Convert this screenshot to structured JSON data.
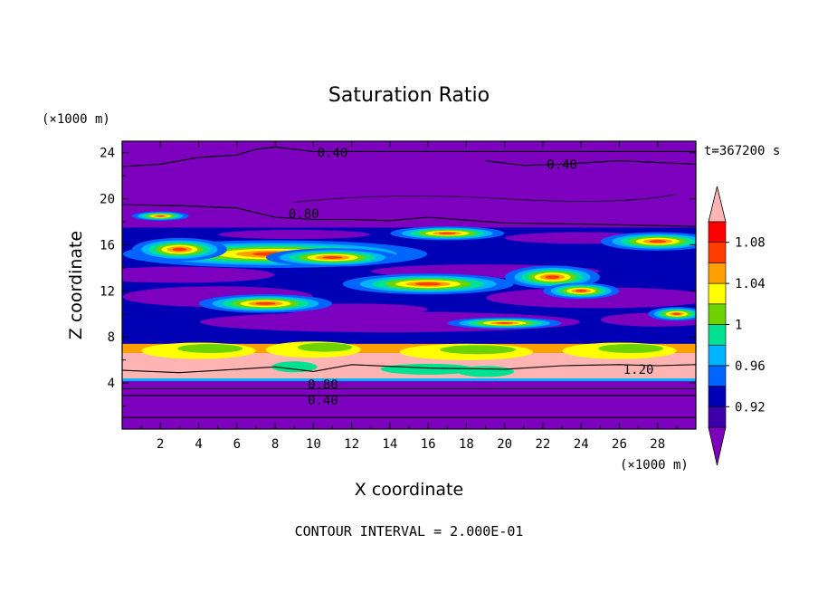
{
  "chart_data": {
    "type": "heatmap",
    "title": "Saturation Ratio",
    "xlabel": "X coordinate",
    "ylabel": "Z coordinate",
    "x_unit": "(×1000 m)",
    "y_unit": "(×1000 m)",
    "time_label": "t=367200 s",
    "footer": "CONTOUR INTERVAL = 2.000E-01",
    "xlim": [
      0,
      30
    ],
    "ylim": [
      0,
      25
    ],
    "x_ticks": [
      2,
      4,
      6,
      8,
      10,
      12,
      14,
      16,
      18,
      20,
      22,
      24,
      26,
      28
    ],
    "y_ticks": [
      4,
      8,
      12,
      16,
      20,
      24
    ],
    "colorbar": {
      "levels": [
        0.9,
        0.92,
        0.94,
        0.96,
        0.98,
        1.0,
        1.02,
        1.04,
        1.06,
        1.08,
        1.1
      ],
      "tick_labels": [
        "0.92",
        "0.96",
        "1",
        "1.04",
        "1.08"
      ],
      "tick_values": [
        0.92,
        0.96,
        1.0,
        1.04,
        1.08
      ],
      "colors": [
        "#7d00bf",
        "#3d00a8",
        "#0000b4",
        "#0064ff",
        "#00b4ff",
        "#00e191",
        "#6ed200",
        "#ffff00",
        "#ffa000",
        "#ff3c00",
        "#ff0000",
        "#ffb4b4"
      ],
      "under_color": "#7d00bf",
      "over_color": "#ffb4b4"
    },
    "contour_labels": [
      "0.40",
      "0.40",
      "0.80",
      "1.20",
      "0.80",
      "0.40"
    ],
    "bands": [
      {
        "z": [
          0.0,
          4.2
        ],
        "value": "0.0-0.9"
      },
      {
        "z": [
          4.2,
          7.2
        ],
        "value": "1.10+"
      },
      {
        "z": [
          7.2,
          17.8
        ],
        "value": "0.92-1.10"
      },
      {
        "z": [
          17.8,
          25.0
        ],
        "value": "0.0-0.9"
      }
    ]
  }
}
